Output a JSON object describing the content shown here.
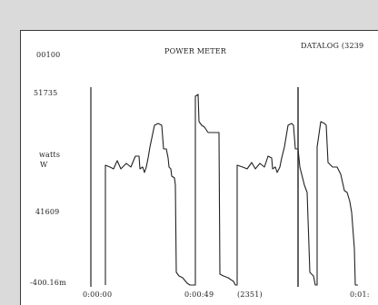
{
  "header": {
    "title": "POWER METER",
    "time": "00100",
    "datalog": "DATALOG (3239"
  },
  "y_axis": {
    "unit_line1": "watts",
    "unit_line2": "W",
    "tick_top": "51735",
    "tick_mid": "41609",
    "tick_bottom": "-400.16m"
  },
  "x_axis": {
    "tick_start": "0:00:00",
    "tick_mid": "0:00:49",
    "tick_mid_count": "(2351)",
    "tick_end": "0:01:"
  },
  "chart_data": {
    "type": "line",
    "title": "POWER METER",
    "ylabel": "watts W",
    "y_ticks": [
      "51735",
      "41609",
      "-400.16m"
    ],
    "x_ticks": [
      "0:00:00",
      "0:00:49",
      "0:01:"
    ],
    "trace_color": "#222222",
    "cursor_positions": [
      "0:00:00",
      "DATALOG (3239"
    ]
  }
}
